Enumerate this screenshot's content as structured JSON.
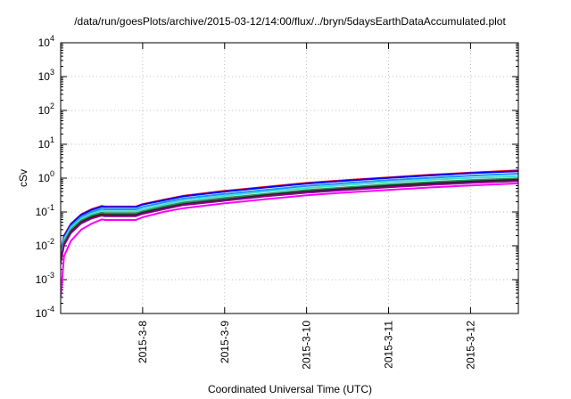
{
  "chart_data": {
    "type": "line",
    "title": "/data/run/goesPlots/archive/2015-03-12/14:00/flux/../bryn/5daysEarthDataAccumulated.plot",
    "xlabel": "Coordinated Universal Time (UTC)",
    "ylabel": "cSv",
    "y_scale": "log",
    "ylim": [
      0.0001,
      10000
    ],
    "xlim": [
      "2015-03-07T00:00",
      "2015-03-12T14:00"
    ],
    "x_ticks": [
      "2015-3-8",
      "2015-3-9",
      "2015-3-10",
      "2015-3-11",
      "2015-3-12"
    ],
    "y_ticks": [
      {
        "base": "10",
        "exp": "-4"
      },
      {
        "base": "10",
        "exp": "-3"
      },
      {
        "base": "10",
        "exp": "-2"
      },
      {
        "base": "10",
        "exp": "-1"
      },
      {
        "base": "10",
        "exp": "0"
      },
      {
        "base": "10",
        "exp": "1"
      },
      {
        "base": "10",
        "exp": "2"
      },
      {
        "base": "10",
        "exp": "3"
      },
      {
        "base": "10",
        "exp": "4"
      }
    ],
    "grid": true,
    "x": [
      "2015-03-07T00:00",
      "2015-03-07T01:00",
      "2015-03-07T03:00",
      "2015-03-07T06:00",
      "2015-03-07T09:00",
      "2015-03-07T12:00",
      "2015-03-07T13:00",
      "2015-03-07T22:00",
      "2015-03-08T00:00",
      "2015-03-08T06:00",
      "2015-03-08T12:00",
      "2015-03-09T00:00",
      "2015-03-09T12:00",
      "2015-03-10T00:00",
      "2015-03-10T12:00",
      "2015-03-11T00:00",
      "2015-03-11T12:00",
      "2015-03-12T00:00",
      "2015-03-12T14:00"
    ],
    "series": [
      {
        "color": "#ff0000",
        "values": [
          0.006,
          0.02,
          0.045,
          0.085,
          0.12,
          0.15,
          0.145,
          0.145,
          0.17,
          0.23,
          0.3,
          0.42,
          0.55,
          0.72,
          0.88,
          1.05,
          1.25,
          1.45,
          1.7
        ]
      },
      {
        "color": "#0000ff",
        "values": [
          0.0058,
          0.019,
          0.043,
          0.082,
          0.115,
          0.145,
          0.14,
          0.14,
          0.165,
          0.22,
          0.29,
          0.4,
          0.53,
          0.69,
          0.85,
          1.02,
          1.2,
          1.4,
          1.6
        ]
      },
      {
        "color": "#1e90ff",
        "values": [
          0.005,
          0.017,
          0.038,
          0.072,
          0.1,
          0.125,
          0.12,
          0.12,
          0.14,
          0.19,
          0.25,
          0.34,
          0.45,
          0.59,
          0.72,
          0.87,
          1.02,
          1.18,
          1.35
        ]
      },
      {
        "color": "#40e0d0",
        "values": [
          0.0045,
          0.015,
          0.034,
          0.063,
          0.088,
          0.11,
          0.105,
          0.105,
          0.12,
          0.165,
          0.22,
          0.3,
          0.4,
          0.51,
          0.63,
          0.76,
          0.89,
          1.02,
          1.15
        ]
      },
      {
        "color": "#2e8b57",
        "values": [
          0.004,
          0.013,
          0.03,
          0.056,
          0.078,
          0.095,
          0.092,
          0.092,
          0.105,
          0.145,
          0.19,
          0.26,
          0.34,
          0.44,
          0.54,
          0.65,
          0.76,
          0.87,
          0.98
        ]
      },
      {
        "color": "#222222",
        "values": [
          0.0035,
          0.011,
          0.026,
          0.05,
          0.07,
          0.085,
          0.082,
          0.082,
          0.095,
          0.13,
          0.17,
          0.23,
          0.31,
          0.4,
          0.49,
          0.59,
          0.69,
          0.79,
          0.9
        ]
      },
      {
        "color": "#8b008b",
        "values": [
          0.0032,
          0.0105,
          0.024,
          0.046,
          0.064,
          0.078,
          0.075,
          0.075,
          0.088,
          0.12,
          0.16,
          0.215,
          0.29,
          0.37,
          0.45,
          0.54,
          0.63,
          0.72,
          0.82
        ]
      },
      {
        "color": "#ff00ff",
        "values": [
          0.0003,
          0.005,
          0.014,
          0.03,
          0.045,
          0.06,
          0.058,
          0.058,
          0.07,
          0.1,
          0.13,
          0.18,
          0.24,
          0.31,
          0.38,
          0.45,
          0.53,
          0.61,
          0.7
        ]
      }
    ]
  }
}
